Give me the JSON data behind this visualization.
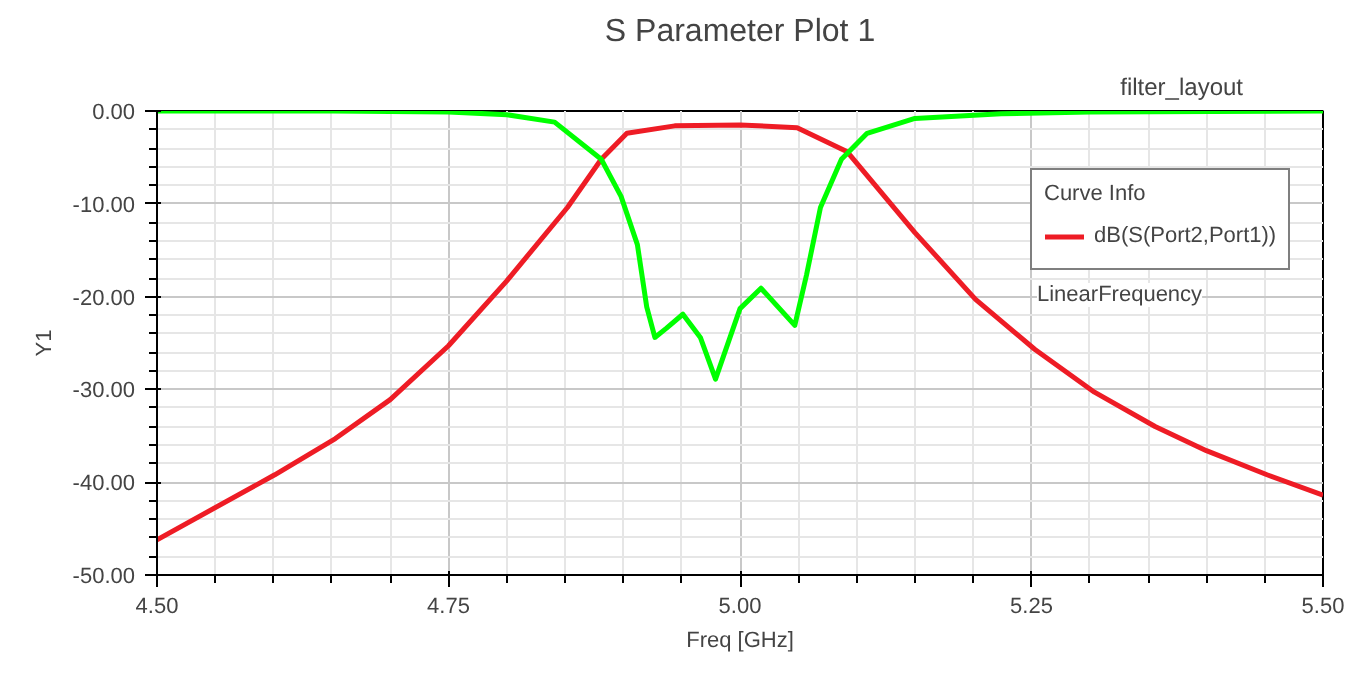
{
  "chart_data": {
    "type": "line",
    "title": "S Parameter Plot 1",
    "xlabel": "Freq [GHz]",
    "ylabel": "Y1",
    "legend_title": "Curve Info",
    "annotations": [
      "filter_layout",
      "LinearFrequency"
    ],
    "xlim": [
      4.5,
      5.5
    ],
    "ylim": [
      -50,
      0
    ],
    "xticks": [
      {
        "value": 4.5,
        "label": "4.50"
      },
      {
        "value": 4.75,
        "label": "4.75"
      },
      {
        "value": 5.0,
        "label": "5.00"
      },
      {
        "value": 5.25,
        "label": "5.25"
      },
      {
        "value": 5.5,
        "label": "5.50"
      }
    ],
    "yticks": [
      {
        "value": -50,
        "label": "-50.00"
      },
      {
        "value": -40,
        "label": "-40.00"
      },
      {
        "value": -30,
        "label": "-30.00"
      },
      {
        "value": -20,
        "label": "-20.00"
      },
      {
        "value": -10,
        "label": "-10.00"
      },
      {
        "value": 0,
        "label": "0.00"
      }
    ],
    "grid": true,
    "legend": "top right",
    "marker": "none",
    "line_style": "solid",
    "series": [
      {
        "name": "dB(S(Port2,Port1))",
        "color": "#ee1c25",
        "x": [
          4.5,
          4.601,
          4.653,
          4.7,
          4.75,
          4.8,
          4.852,
          4.881,
          4.903,
          4.944,
          5.0,
          5.049,
          5.092,
          5.15,
          5.202,
          5.253,
          5.304,
          5.356,
          5.4,
          5.452,
          5.5
        ],
        "values": [
          -46.2,
          -39.2,
          -35.3,
          -31.1,
          -25.3,
          -18.3,
          -10.4,
          -5.2,
          -2.4,
          -1.6,
          -1.5,
          -1.8,
          -4.4,
          -13.1,
          -20.3,
          -25.7,
          -30.3,
          -34.0,
          -36.6,
          -39.2,
          -41.4
        ]
      },
      {
        "color": "#00ff00",
        "x": [
          4.5,
          4.65,
          4.75,
          4.8,
          4.841,
          4.881,
          4.898,
          4.912,
          4.92,
          4.927,
          4.937,
          4.951,
          4.966,
          4.979,
          5.0,
          5.018,
          5.047,
          5.057,
          5.069,
          5.087,
          5.109,
          5.15,
          5.224,
          5.3,
          5.5
        ],
        "values": [
          0,
          0,
          -0.1,
          -0.4,
          -1.2,
          -5.2,
          -9.2,
          -14.4,
          -21.1,
          -24.4,
          -23.4,
          -21.9,
          -24.4,
          -28.9,
          -21.3,
          -19.1,
          -23.1,
          -17.7,
          -10.4,
          -5.2,
          -2.4,
          -0.8,
          -0.3,
          -0.1,
          0
        ]
      }
    ]
  }
}
